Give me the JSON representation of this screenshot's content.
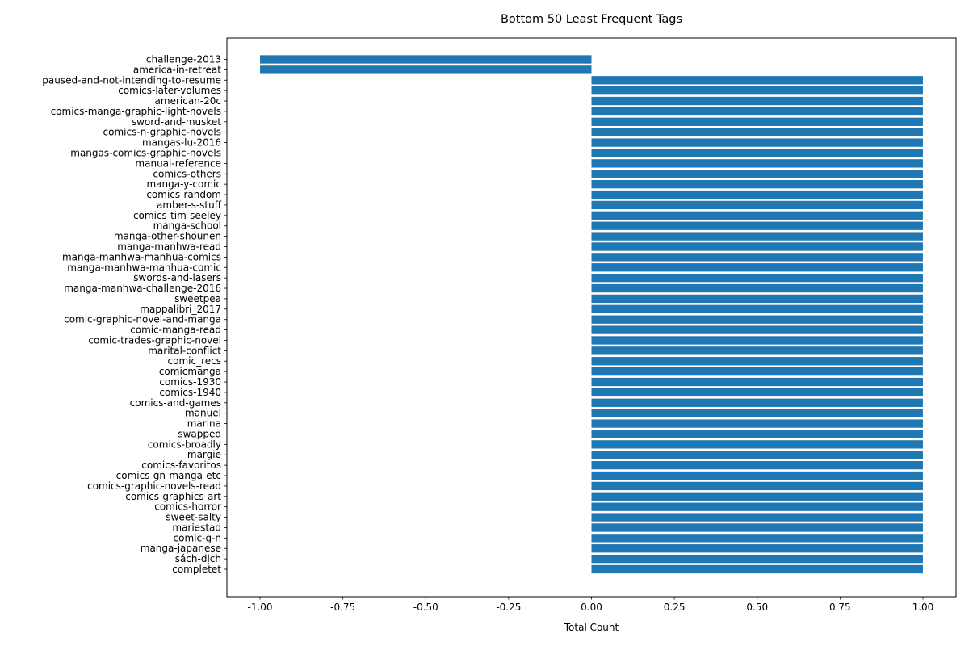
{
  "chart_data": {
    "type": "bar",
    "orientation": "horizontal",
    "title": "Bottom 50 Least Frequent Tags",
    "xlabel": "Total Count",
    "ylabel": "",
    "xlim": [
      -1.1,
      1.1
    ],
    "xticks": [
      "-1.00",
      "-0.75",
      "-0.50",
      "-0.25",
      "0.00",
      "0.25",
      "0.50",
      "0.75",
      "1.00"
    ],
    "xtick_values": [
      -1.0,
      -0.75,
      -0.5,
      -0.25,
      0.0,
      0.25,
      0.5,
      0.75,
      1.0
    ],
    "bar_color": "#1f77b4",
    "grid": false,
    "categories": [
      "challenge-2013",
      "america-in-retreat",
      "paused-and-not-intending-to-resume",
      "comics-later-volumes",
      "american-20c",
      "comics-manga-graphic-light-novels",
      "sword-and-musket",
      "comics-n-graphic-novels",
      "mangas-lu-2016",
      "mangas-comics-graphic-novels",
      "manual-reference",
      "comics-others",
      "manga-y-comic",
      "comics-random",
      "amber-s-stuff",
      "comics-tim-seeley",
      "manga-school",
      "manga-other-shounen",
      "manga-manhwa-read",
      "manga-manhwa-manhua-comics",
      "manga-manhwa-manhua-comic",
      "swords-and-lasers",
      "manga-manhwa-challenge-2016",
      "sweetpea",
      "mappalibri_2017",
      "comic-graphic-novel-and-manga",
      "comic-manga-read",
      "comic-trades-graphic-novel",
      "marital-conflict",
      "comic_recs",
      "comicmanga",
      "comics-1930",
      "comics-1940",
      "comics-and-games",
      "manuel",
      "marina",
      "swapped",
      "comics-broadly",
      "margie",
      "comics-favoritos",
      "comics-gn-manga-etc",
      "comics-graphic-novels-read",
      "comics-graphics-art",
      "comics-horror",
      "sweet-salty",
      "mariestad",
      "comic-g-n",
      "manga-japanese",
      "sách-dịch",
      "completet"
    ],
    "values": [
      -1,
      -1,
      1,
      1,
      1,
      1,
      1,
      1,
      1,
      1,
      1,
      1,
      1,
      1,
      1,
      1,
      1,
      1,
      1,
      1,
      1,
      1,
      1,
      1,
      1,
      1,
      1,
      1,
      1,
      1,
      1,
      1,
      1,
      1,
      1,
      1,
      1,
      1,
      1,
      1,
      1,
      1,
      1,
      1,
      1,
      1,
      1,
      1,
      1,
      1
    ]
  }
}
